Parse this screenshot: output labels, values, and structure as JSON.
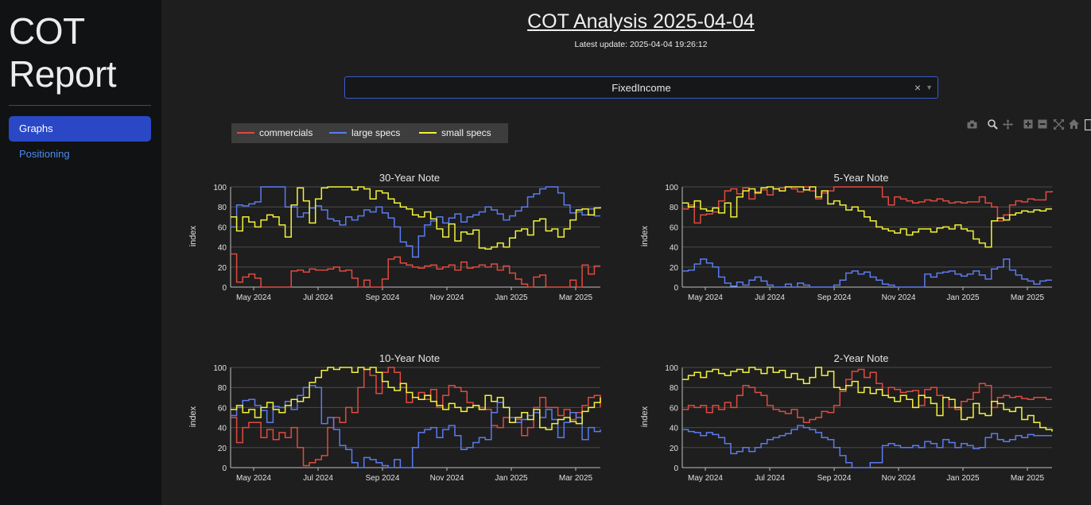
{
  "sidebar": {
    "brand_line1": "COT",
    "brand_line2": "Report",
    "nav": [
      {
        "label": "Graphs",
        "active": true
      },
      {
        "label": "Positioning",
        "active": false
      }
    ]
  },
  "header": {
    "title": "COT Analysis 2025-04-04",
    "update": "Latest update: 2025-04-04 19:26:12"
  },
  "dropdown": {
    "value": "FixedIncome",
    "clear_icon": "×",
    "arrow_icon": "chevron-down-icon"
  },
  "legend": [
    {
      "name": "commercials",
      "color": "#e04a3f"
    },
    {
      "name": "large specs",
      "color": "#5a7bf0"
    },
    {
      "name": "small specs",
      "color": "#f2f23a"
    }
  ],
  "modebar_icons": [
    "camera-icon",
    "zoom-icon",
    "pan-icon",
    "zoom-in-icon",
    "zoom-out-icon",
    "autoscale-icon",
    "home-icon"
  ],
  "chart_data": [
    {
      "type": "line",
      "title": "30-Year Note",
      "ylabel": "index",
      "ylim": [
        0,
        100
      ],
      "yticks": [
        "0",
        "20",
        "40",
        "60",
        "80",
        "100"
      ],
      "xticks": [
        "May 2024",
        "Jul 2024",
        "Sep 2024",
        "Nov 2024",
        "Jan 2025",
        "Mar 2025"
      ],
      "grid": true,
      "step": true,
      "series": [
        {
          "name": "commercials",
          "values": [
            33,
            5,
            10,
            13,
            9,
            0,
            0,
            0,
            0,
            0,
            16,
            17,
            15,
            18,
            17,
            17,
            18,
            20,
            16,
            17,
            9,
            0,
            7,
            0,
            0,
            8,
            28,
            30,
            24,
            22,
            20,
            19,
            21,
            22,
            18,
            20,
            22,
            17,
            25,
            19,
            20,
            22,
            20,
            23,
            17,
            21,
            14,
            8,
            3,
            0,
            10,
            12,
            0,
            0,
            0,
            0,
            7,
            0,
            22,
            13,
            21,
            21
          ]
        },
        {
          "name": "large specs",
          "values": [
            60,
            82,
            81,
            83,
            85,
            100,
            100,
            100,
            100,
            80,
            80,
            70,
            74,
            79,
            81,
            77,
            68,
            66,
            62,
            70,
            67,
            71,
            77,
            75,
            80,
            74,
            69,
            60,
            45,
            41,
            30,
            51,
            62,
            66,
            70,
            64,
            69,
            73,
            65,
            70,
            72,
            75,
            80,
            77,
            73,
            67,
            71,
            76,
            80,
            90,
            93,
            98,
            100,
            100,
            94,
            82,
            74,
            75,
            72,
            78,
            71,
            71
          ]
        },
        {
          "name": "small specs",
          "values": [
            70,
            56,
            70,
            65,
            60,
            67,
            72,
            70,
            62,
            50,
            82,
            99,
            86,
            64,
            88,
            99,
            100,
            100,
            100,
            100,
            97,
            100,
            98,
            88,
            96,
            94,
            88,
            84,
            80,
            78,
            72,
            70,
            75,
            68,
            58,
            50,
            63,
            46,
            55,
            53,
            57,
            39,
            38,
            40,
            44,
            40,
            49,
            56,
            58,
            52,
            66,
            68,
            56,
            58,
            50,
            58,
            67,
            77,
            78,
            72,
            79,
            80
          ]
        }
      ]
    },
    {
      "type": "line",
      "title": "5-Year Note",
      "ylabel": "index",
      "ylim": [
        0,
        100
      ],
      "yticks": [
        "0",
        "20",
        "40",
        "60",
        "80",
        "100"
      ],
      "xticks": [
        "May 2024",
        "Jul 2024",
        "Sep 2024",
        "Nov 2024",
        "Jan 2025",
        "Mar 2025"
      ],
      "grid": true,
      "step": true,
      "series": [
        {
          "name": "commercials",
          "values": [
            78,
            82,
            64,
            72,
            73,
            75,
            86,
            96,
            98,
            93,
            99,
            88,
            95,
            97,
            92,
            98,
            99,
            100,
            98,
            95,
            100,
            96,
            88,
            94,
            96,
            100,
            100,
            100,
            100,
            100,
            100,
            100,
            100,
            90,
            82,
            90,
            88,
            86,
            84,
            85,
            87,
            86,
            88,
            86,
            84,
            85,
            84,
            85,
            85,
            90,
            84,
            80,
            66,
            72,
            82,
            86,
            85,
            88,
            87,
            87,
            95,
            96
          ]
        },
        {
          "name": "large specs",
          "values": [
            16,
            17,
            23,
            28,
            24,
            20,
            10,
            4,
            1,
            5,
            2,
            7,
            10,
            6,
            2,
            0,
            0,
            3,
            0,
            4,
            2,
            0,
            0,
            0,
            0,
            2,
            7,
            14,
            16,
            13,
            15,
            10,
            7,
            3,
            2,
            0,
            0,
            0,
            0,
            0,
            13,
            10,
            14,
            15,
            16,
            13,
            11,
            13,
            16,
            12,
            8,
            18,
            20,
            28,
            17,
            12,
            8,
            6,
            3,
            6,
            7,
            7
          ]
        },
        {
          "name": "small specs",
          "values": [
            84,
            80,
            86,
            78,
            76,
            79,
            74,
            84,
            70,
            90,
            96,
            98,
            94,
            99,
            100,
            98,
            96,
            100,
            100,
            100,
            97,
            100,
            90,
            96,
            83,
            86,
            82,
            77,
            80,
            76,
            70,
            66,
            60,
            58,
            56,
            54,
            58,
            52,
            55,
            58,
            58,
            55,
            59,
            60,
            58,
            62,
            58,
            56,
            48,
            44,
            40,
            66,
            69,
            67,
            72,
            74,
            76,
            75,
            77,
            76,
            78,
            78
          ]
        }
      ]
    },
    {
      "type": "line",
      "title": "10-Year Note",
      "ylabel": "index",
      "ylim": [
        0,
        100
      ],
      "yticks": [
        "0",
        "20",
        "40",
        "60",
        "80",
        "100"
      ],
      "xticks": [
        "May 2024",
        "Jul 2024",
        "Sep 2024",
        "Nov 2024",
        "Jan 2025",
        "Mar 2025"
      ],
      "grid": true,
      "step": true,
      "series": [
        {
          "name": "commercials",
          "values": [
            50,
            25,
            40,
            45,
            45,
            30,
            38,
            28,
            35,
            30,
            40,
            20,
            2,
            5,
            8,
            12,
            40,
            50,
            45,
            60,
            55,
            80,
            98,
            92,
            74,
            95,
            100,
            95,
            80,
            65,
            70,
            75,
            68,
            78,
            60,
            72,
            82,
            80,
            76,
            65,
            62,
            60,
            58,
            42,
            40,
            50,
            45,
            48,
            32,
            40,
            60,
            70,
            60,
            60,
            52,
            58,
            48,
            55,
            62,
            70,
            72,
            60
          ]
        },
        {
          "name": "large specs",
          "values": [
            52,
            60,
            67,
            68,
            62,
            57,
            45,
            61,
            60,
            66,
            58,
            72,
            80,
            82,
            80,
            44,
            50,
            38,
            22,
            18,
            5,
            0,
            10,
            8,
            5,
            2,
            0,
            8,
            0,
            0,
            20,
            35,
            38,
            40,
            30,
            38,
            42,
            32,
            18,
            20,
            25,
            30,
            28,
            55,
            65,
            60,
            50,
            45,
            48,
            52,
            55,
            50,
            58,
            48,
            30,
            45,
            55,
            50,
            28,
            40,
            36,
            38
          ]
        },
        {
          "name": "small specs",
          "values": [
            58,
            62,
            55,
            58,
            50,
            60,
            65,
            58,
            55,
            62,
            68,
            66,
            70,
            85,
            90,
            97,
            100,
            98,
            100,
            100,
            95,
            100,
            98,
            100,
            95,
            86,
            80,
            77,
            84,
            75,
            70,
            68,
            72,
            66,
            62,
            58,
            64,
            60,
            56,
            60,
            62,
            58,
            72,
            66,
            70,
            60,
            45,
            50,
            55,
            48,
            58,
            40,
            38,
            44,
            48,
            50,
            46,
            44,
            56,
            60,
            65,
            70
          ]
        }
      ]
    },
    {
      "type": "line",
      "title": "2-Year Note",
      "ylabel": "index",
      "ylim": [
        0,
        100
      ],
      "yticks": [
        "0",
        "20",
        "40",
        "60",
        "80",
        "100"
      ],
      "xticks": [
        "May 2024",
        "Jul 2024",
        "Sep 2024",
        "Nov 2024",
        "Jan 2025",
        "Mar 2025"
      ],
      "grid": true,
      "step": true,
      "series": [
        {
          "name": "commercials",
          "values": [
            58,
            62,
            60,
            62,
            55,
            62,
            58,
            65,
            60,
            72,
            82,
            80,
            75,
            72,
            62,
            58,
            56,
            54,
            58,
            50,
            45,
            48,
            50,
            56,
            55,
            62,
            76,
            88,
            96,
            98,
            90,
            95,
            84,
            72,
            80,
            78,
            75,
            76,
            77,
            62,
            78,
            80,
            72,
            70,
            60,
            58,
            66,
            68,
            75,
            84,
            82,
            60,
            70,
            72,
            70,
            71,
            69,
            68,
            70,
            70,
            68,
            68
          ]
        },
        {
          "name": "large specs",
          "values": [
            38,
            36,
            35,
            32,
            35,
            33,
            30,
            24,
            14,
            16,
            20,
            16,
            20,
            24,
            28,
            30,
            32,
            34,
            38,
            42,
            40,
            38,
            35,
            30,
            28,
            20,
            12,
            5,
            0,
            0,
            0,
            5,
            5,
            22,
            24,
            22,
            20,
            20,
            22,
            20,
            26,
            24,
            20,
            28,
            25,
            20,
            24,
            22,
            19,
            20,
            30,
            34,
            28,
            26,
            28,
            32,
            30,
            33,
            32,
            32,
            32,
            32
          ]
        },
        {
          "name": "small specs",
          "values": [
            88,
            92,
            95,
            90,
            96,
            98,
            94,
            92,
            96,
            98,
            95,
            100,
            98,
            94,
            100,
            95,
            97,
            90,
            94,
            88,
            84,
            90,
            100,
            92,
            96,
            80,
            78,
            82,
            86,
            75,
            80,
            74,
            78,
            72,
            70,
            66,
            72,
            68,
            60,
            72,
            70,
            64,
            52,
            70,
            68,
            60,
            48,
            50,
            64,
            54,
            52,
            66,
            64,
            58,
            56,
            60,
            48,
            52,
            45,
            40,
            38,
            36
          ]
        }
      ]
    }
  ]
}
